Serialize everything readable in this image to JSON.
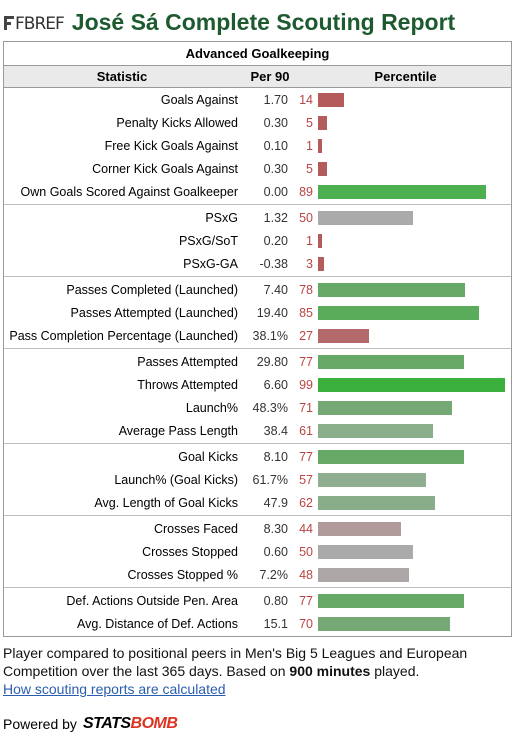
{
  "header": {
    "logo_text": "FBREF",
    "title": "José Sá Complete Scouting Report"
  },
  "table": {
    "caption": "Advanced Goalkeeping",
    "columns": [
      "Statistic",
      "Per 90",
      "Percentile"
    ],
    "groups": [
      {
        "rows": [
          {
            "label": "Goals Against",
            "per90": "1.70",
            "pct": 14,
            "color": "#b45c5c"
          },
          {
            "label": "Penalty Kicks Allowed",
            "per90": "0.30",
            "pct": 5,
            "color": "#b45c5c"
          },
          {
            "label": "Free Kick Goals Against",
            "per90": "0.10",
            "pct": 1,
            "color": "#b45c5c"
          },
          {
            "label": "Corner Kick Goals Against",
            "per90": "0.30",
            "pct": 5,
            "color": "#b45c5c"
          },
          {
            "label": "Own Goals Scored Against Goalkeeper",
            "per90": "0.00",
            "pct": 89,
            "color": "#4caf50"
          }
        ]
      },
      {
        "rows": [
          {
            "label": "PSxG",
            "per90": "1.32",
            "pct": 50,
            "color": "#aaaaaa"
          },
          {
            "label": "PSxG/SoT",
            "per90": "0.20",
            "pct": 1,
            "color": "#b45c5c"
          },
          {
            "label": "PSxG-GA",
            "per90": "-0.38",
            "pct": 3,
            "color": "#b45c5c"
          }
        ]
      },
      {
        "rows": [
          {
            "label": "Passes Completed (Launched)",
            "per90": "7.40",
            "pct": 78,
            "color": "#66a866"
          },
          {
            "label": "Passes Attempted (Launched)",
            "per90": "19.40",
            "pct": 85,
            "color": "#5aac5a"
          },
          {
            "label": "Pass Completion Percentage (Launched)",
            "per90": "38.1%",
            "pct": 27,
            "color": "#b46a6a"
          }
        ]
      },
      {
        "rows": [
          {
            "label": "Passes Attempted",
            "per90": "29.80",
            "pct": 77,
            "color": "#66a866"
          },
          {
            "label": "Throws Attempted",
            "per90": "6.60",
            "pct": 99,
            "color": "#3cb03c"
          },
          {
            "label": "Launch%",
            "per90": "48.3%",
            "pct": 71,
            "color": "#74a874"
          },
          {
            "label": "Average Pass Length",
            "per90": "38.4",
            "pct": 61,
            "color": "#8aad8a"
          }
        ]
      },
      {
        "rows": [
          {
            "label": "Goal Kicks",
            "per90": "8.10",
            "pct": 77,
            "color": "#66a866"
          },
          {
            "label": "Launch% (Goal Kicks)",
            "per90": "61.7%",
            "pct": 57,
            "color": "#8fae8f"
          },
          {
            "label": "Avg. Length of Goal Kicks",
            "per90": "47.9",
            "pct": 62,
            "color": "#88ad88"
          }
        ]
      },
      {
        "rows": [
          {
            "label": "Crosses Faced",
            "per90": "8.30",
            "pct": 44,
            "color": "#b09a9a"
          },
          {
            "label": "Crosses Stopped",
            "per90": "0.60",
            "pct": 50,
            "color": "#aaaaaa"
          },
          {
            "label": "Crosses Stopped %",
            "per90": "7.2%",
            "pct": 48,
            "color": "#aca6a6"
          }
        ]
      },
      {
        "rows": [
          {
            "label": "Def. Actions Outside Pen. Area",
            "per90": "0.80",
            "pct": 77,
            "color": "#66a866"
          },
          {
            "label": "Avg. Distance of Def. Actions",
            "per90": "15.1",
            "pct": 70,
            "color": "#76a876"
          }
        ]
      }
    ]
  },
  "footer": {
    "note_pre": "Player compared to positional peers in Men's Big 5 Leagues and European Competition over the last 365 days. Based on ",
    "note_minutes": "900 minutes",
    "note_post": " played.",
    "link": "How scouting reports are calculated",
    "powered": "Powered by",
    "brand_a": "STATS",
    "brand_b": "BOMB"
  }
}
